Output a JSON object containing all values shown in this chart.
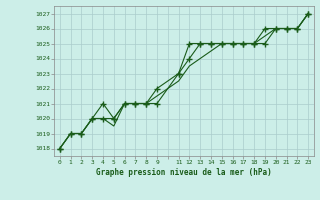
{
  "title": "Graphe pression niveau de la mer (hPa)",
  "background_color": "#cceee8",
  "grid_color": "#aacccc",
  "line_color": "#1a5c1a",
  "xlim": [
    -0.5,
    23.5
  ],
  "ylim": [
    1017.5,
    1027.5
  ],
  "yticks": [
    1018,
    1019,
    1020,
    1021,
    1022,
    1023,
    1024,
    1025,
    1026,
    1027
  ],
  "xtick_labels": [
    "0",
    "1",
    "2",
    "3",
    "4",
    "5",
    "6",
    "7",
    "8",
    "9",
    "",
    "11",
    "12",
    "13",
    "14",
    "15",
    "16",
    "17",
    "18",
    "19",
    "20",
    "21",
    "22",
    "23"
  ],
  "xtick_positions": [
    0,
    1,
    2,
    3,
    4,
    5,
    6,
    7,
    8,
    9,
    10,
    11,
    12,
    13,
    14,
    15,
    16,
    17,
    18,
    19,
    20,
    21,
    22,
    23
  ],
  "series": [
    {
      "x": [
        0,
        1,
        2,
        3,
        4,
        5,
        6,
        7,
        8,
        9,
        11,
        12,
        13,
        14,
        15,
        16,
        17,
        18,
        19,
        20,
        21,
        22,
        23
      ],
      "y": [
        1018.0,
        1019.0,
        1019.0,
        1020.0,
        1021.0,
        1020.0,
        1021.0,
        1021.0,
        1021.0,
        1021.0,
        1023.0,
        1025.0,
        1025.0,
        1025.0,
        1025.0,
        1025.0,
        1025.0,
        1025.0,
        1025.0,
        1026.0,
        1026.0,
        1026.0,
        1027.0
      ],
      "marker": "+"
    },
    {
      "x": [
        0,
        1,
        2,
        3,
        4,
        5,
        6,
        7,
        8,
        9,
        11,
        12,
        13,
        14,
        15,
        16,
        17,
        18,
        19,
        20,
        21,
        22,
        23
      ],
      "y": [
        1018.0,
        1019.0,
        1019.0,
        1020.0,
        1020.0,
        1019.5,
        1021.0,
        1021.0,
        1021.0,
        1021.5,
        1022.5,
        1023.5,
        1024.0,
        1024.5,
        1025.0,
        1025.0,
        1025.0,
        1025.0,
        1025.5,
        1026.0,
        1026.0,
        1026.0,
        1027.0
      ],
      "marker": null
    },
    {
      "x": [
        0,
        1,
        2,
        3,
        4,
        5,
        6,
        7,
        8,
        9,
        11,
        12,
        13,
        14,
        15,
        16,
        17,
        18,
        19,
        20,
        21,
        22,
        23
      ],
      "y": [
        1018.0,
        1019.0,
        1019.0,
        1020.0,
        1020.0,
        1020.0,
        1021.0,
        1021.0,
        1021.0,
        1022.0,
        1023.0,
        1024.0,
        1025.0,
        1025.0,
        1025.0,
        1025.0,
        1025.0,
        1025.0,
        1026.0,
        1026.0,
        1026.0,
        1026.0,
        1027.0
      ],
      "marker": "+"
    }
  ]
}
